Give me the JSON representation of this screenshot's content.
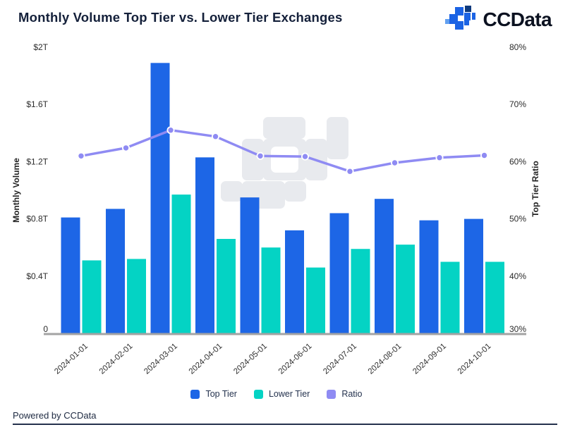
{
  "header": {
    "title": "Monthly Volume Top Tier vs. Lower Tier Exchanges",
    "brand": "CCData"
  },
  "chart_data": {
    "type": "bar",
    "subtype": "grouped-bars-with-line-overlay",
    "title": "Monthly Volume Top Tier vs. Lower Tier Exchanges",
    "categories": [
      "2024-01-01",
      "2024-02-01",
      "2024-03-01",
      "2024-04-01",
      "2024-05-01",
      "2024-06-01",
      "2024-07-01",
      "2024-08-01",
      "2024-09-01",
      "2024-10-01"
    ],
    "series": [
      {
        "name": "Top Tier",
        "type": "bar",
        "axis": "left",
        "unit": "$T",
        "color": "#1d66e6",
        "values": [
          0.81,
          0.87,
          1.89,
          1.23,
          0.95,
          0.72,
          0.84,
          0.94,
          0.79,
          0.8
        ]
      },
      {
        "name": "Lower Tier",
        "type": "bar",
        "axis": "left",
        "unit": "$T",
        "color": "#04d3c4",
        "values": [
          0.51,
          0.52,
          0.97,
          0.66,
          0.6,
          0.46,
          0.59,
          0.62,
          0.5,
          0.5
        ]
      },
      {
        "name": "Ratio",
        "type": "line",
        "axis": "right",
        "unit": "%",
        "color": "#8f8bf3",
        "values": [
          61.0,
          62.4,
          65.5,
          64.4,
          61.0,
          60.9,
          58.3,
          59.8,
          60.7,
          61.1
        ]
      }
    ],
    "left_axis": {
      "label": "Monthly Volume",
      "range": [
        0,
        2
      ],
      "ticks": [
        {
          "label": "$2T",
          "value": 2.0
        },
        {
          "label": "$1.6T",
          "value": 1.6
        },
        {
          "label": "$1.2T",
          "value": 1.2
        },
        {
          "label": "$0.8T",
          "value": 0.8
        },
        {
          "label": "$0.4T",
          "value": 0.4
        },
        {
          "label": "0",
          "value": 0.0
        }
      ]
    },
    "right_axis": {
      "label": "Top Tier Ratio",
      "range": [
        30,
        80
      ],
      "ticks": [
        {
          "label": "80%",
          "value": 80
        },
        {
          "label": "70%",
          "value": 70
        },
        {
          "label": "60%",
          "value": 60
        },
        {
          "label": "50%",
          "value": 50
        },
        {
          "label": "40%",
          "value": 40
        },
        {
          "label": "30%",
          "value": 30
        }
      ]
    },
    "legend_position": "bottom",
    "grid": false
  },
  "legend": {
    "items": [
      {
        "label": "Top Tier",
        "color": "#1d66e6"
      },
      {
        "label": "Lower Tier",
        "color": "#04d3c4"
      },
      {
        "label": "Ratio",
        "color": "#8f8bf3"
      }
    ]
  },
  "footer": {
    "text": "Powered by CCData"
  },
  "colors": {
    "top_tier_blue": "#1d66e6",
    "lower_tier_teal": "#04d3c4",
    "ratio_purple": "#8f8bf3",
    "title_navy": "#14203a",
    "axis_line_gray": "#a3a3a3",
    "watermark_gray": "#e8eaee"
  }
}
